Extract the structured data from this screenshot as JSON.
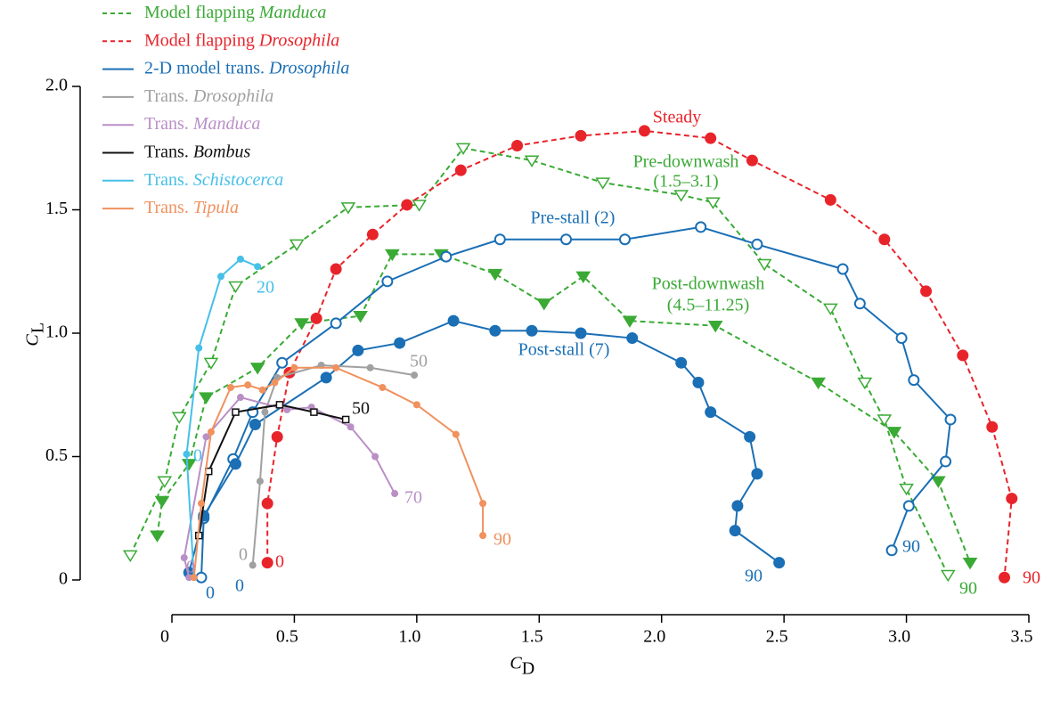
{
  "chart_data": {
    "type": "polar-curve",
    "xlabel": "C",
    "xlabel_sub": "D",
    "ylabel": "C",
    "ylabel_sub": "L",
    "xlim": [
      0,
      3.5
    ],
    "ylim": [
      0,
      2
    ],
    "xticks": [
      0,
      0.5,
      {
        "value": 1,
        "label": "1.0"
      },
      1.5,
      {
        "value": 2,
        "label": "2.0"
      },
      2.5,
      {
        "value": 3,
        "label": "3.0"
      },
      3.5
    ],
    "yticks": [
      0,
      0.5,
      {
        "value": 1,
        "label": "1.0"
      },
      1.5,
      {
        "value": 2,
        "label": "2.0"
      }
    ],
    "legend": "top-left",
    "series": [
      {
        "name": "Model flapping Manduca",
        "color": "#3aaa35",
        "dashed": true,
        "curves": [
          {
            "marker": "triangle-open",
            "x": [
              -0.17,
              -0.03,
              0.03,
              0.16,
              0.26,
              0.51,
              0.72,
              1.01,
              1.19,
              1.47,
              1.76,
              2.08,
              2.21,
              2.42,
              2.69,
              2.83,
              2.91,
              3.0,
              3.17
            ],
            "y": [
              0.1,
              0.4,
              0.66,
              0.88,
              1.19,
              1.36,
              1.51,
              1.52,
              1.75,
              1.7,
              1.61,
              1.56,
              1.53,
              1.28,
              1.1,
              0.8,
              0.65,
              0.37,
              0.02
            ]
          },
          {
            "marker": "triangle-filled",
            "x": [
              -0.06,
              -0.04,
              0.07,
              0.14,
              0.35,
              0.53,
              0.77,
              0.9,
              1.1,
              1.32,
              1.52,
              1.68,
              1.87,
              2.22,
              2.64,
              2.95,
              3.13,
              3.26
            ],
            "y": [
              0.18,
              0.32,
              0.47,
              0.74,
              0.86,
              1.04,
              1.07,
              1.32,
              1.32,
              1.24,
              1.12,
              1.23,
              1.05,
              1.03,
              0.8,
              0.6,
              0.4,
              0.07
            ]
          }
        ]
      },
      {
        "name": "Model flapping Drosophila",
        "color": "#e8242b",
        "dashed": true,
        "curves": [
          {
            "marker": "circle-filled",
            "x": [
              0.39,
              0.39,
              0.43,
              0.48,
              0.59,
              0.67,
              0.82,
              0.96,
              1.18,
              1.41,
              1.67,
              1.93,
              2.2,
              2.37,
              2.69,
              2.91,
              3.08,
              3.23,
              3.35,
              3.43,
              3.4
            ],
            "y": [
              0.07,
              0.31,
              0.58,
              0.84,
              1.06,
              1.26,
              1.4,
              1.52,
              1.66,
              1.76,
              1.8,
              1.82,
              1.79,
              1.7,
              1.54,
              1.38,
              1.17,
              0.91,
              0.62,
              0.33,
              0.01
            ]
          }
        ]
      },
      {
        "name": "2-D model trans. Drosophila",
        "color": "#1a6fb5",
        "dashed": false,
        "curves": [
          {
            "marker": "circle-open",
            "x": [
              0.12,
              0.13,
              0.25,
              0.33,
              0.45,
              0.67,
              0.88,
              1.12,
              1.34,
              1.61,
              1.85,
              2.16,
              2.39,
              2.74,
              2.81,
              2.98,
              3.03,
              3.18,
              3.16,
              3.01,
              2.94
            ],
            "y": [
              0.01,
              0.25,
              0.49,
              0.68,
              0.88,
              1.04,
              1.21,
              1.31,
              1.38,
              1.38,
              1.38,
              1.43,
              1.36,
              1.26,
              1.12,
              0.98,
              0.81,
              0.65,
              0.48,
              0.3,
              0.12
            ]
          },
          {
            "marker": "circle-filled",
            "x": [
              0.07,
              0.13,
              0.26,
              0.34,
              0.63,
              0.76,
              0.93,
              1.15,
              1.32,
              1.47,
              1.67,
              1.88,
              2.08,
              2.15,
              2.2,
              2.36,
              2.39,
              2.31,
              2.3,
              2.48
            ],
            "y": [
              0.03,
              0.26,
              0.47,
              0.63,
              0.82,
              0.93,
              0.96,
              1.05,
              1.01,
              1.01,
              1.0,
              0.98,
              0.88,
              0.8,
              0.68,
              0.58,
              0.43,
              0.3,
              0.2,
              0.07
            ]
          }
        ]
      },
      {
        "name": "Trans. Drosophila",
        "color": "#a0a0a0",
        "dashed": false,
        "curves": [
          {
            "marker": "dot",
            "x": [
              0.33,
              0.36,
              0.38,
              0.43,
              0.61,
              0.81,
              0.99
            ],
            "y": [
              0.06,
              0.4,
              0.68,
              0.82,
              0.87,
              0.86,
              0.83
            ]
          }
        ]
      },
      {
        "name": "Trans. Manduca",
        "color": "#b98fc6",
        "dashed": false,
        "curves": [
          {
            "marker": "dot",
            "x": [
              0.07,
              0.05,
              0.14,
              0.28,
              0.47,
              0.57,
              0.73,
              0.83,
              0.91
            ],
            "y": [
              0.01,
              0.09,
              0.58,
              0.74,
              0.69,
              0.7,
              0.62,
              0.5,
              0.35
            ]
          }
        ]
      },
      {
        "name": "Trans. Bombus",
        "color": "#111111",
        "dashed": false,
        "curves": [
          {
            "marker": "square-open",
            "x": [
              0.11,
              0.15,
              0.26,
              0.44,
              0.58,
              0.71
            ],
            "y": [
              0.18,
              0.44,
              0.68,
              0.71,
              0.68,
              0.65
            ]
          }
        ]
      },
      {
        "name": "Trans. Schistocerca",
        "color": "#45c0e8",
        "dashed": false,
        "curves": [
          {
            "marker": "dot",
            "x": [
              0.09,
              0.06,
              0.11,
              0.2,
              0.28,
              0.35
            ],
            "y": [
              0.01,
              0.51,
              0.94,
              1.23,
              1.3,
              1.27
            ]
          }
        ]
      },
      {
        "name": "Trans. Tipula",
        "color": "#f0915e",
        "dashed": false,
        "curves": [
          {
            "marker": "dot",
            "x": [
              0.09,
              0.12,
              0.16,
              0.24,
              0.31,
              0.37,
              0.42,
              0.5,
              0.67,
              0.86,
              1.0,
              1.16,
              1.27,
              1.27
            ],
            "y": [
              0.01,
              0.31,
              0.6,
              0.78,
              0.79,
              0.77,
              0.8,
              0.86,
              0.86,
              0.78,
              0.71,
              0.59,
              0.31,
              0.18
            ]
          }
        ]
      }
    ],
    "annotations": [
      {
        "text": "Steady",
        "color": "#e8242b"
      },
      {
        "text": "Pre-downwash",
        "color": "#3aaa35"
      },
      {
        "text": "(1.5–3.1)",
        "color": "#3aaa35"
      },
      {
        "text": "Pre-stall (2)",
        "color": "#1a6fb5"
      },
      {
        "text": "Post-downwash",
        "color": "#3aaa35"
      },
      {
        "text": "(4.5–11.25)",
        "color": "#3aaa35"
      },
      {
        "text": "Post-stall (7)",
        "color": "#1a6fb5"
      },
      {
        "text": "20",
        "color": "#45c0e8"
      },
      {
        "text": "50",
        "color": "#a0a0a0"
      },
      {
        "text": "50",
        "color": "#111111"
      },
      {
        "text": "70",
        "color": "#b98fc6"
      },
      {
        "text": "90",
        "color": "#f0915e"
      },
      {
        "text": "0",
        "color": "#a0a0a0"
      },
      {
        "text": "0",
        "color": "#e8242b"
      },
      {
        "text": "0",
        "color": "#b98fc6"
      },
      {
        "text": "0",
        "color": "#1a6fb5"
      },
      {
        "text": "0",
        "color": "#1a6fb5"
      },
      {
        "text": "0",
        "color": "#45c0e8"
      },
      {
        "text": "90",
        "color": "#1a6fb5"
      },
      {
        "text": "90",
        "color": "#1a6fb5"
      },
      {
        "text": "90",
        "color": "#3aaa35"
      },
      {
        "text": "90",
        "color": "#e8242b"
      }
    ]
  }
}
